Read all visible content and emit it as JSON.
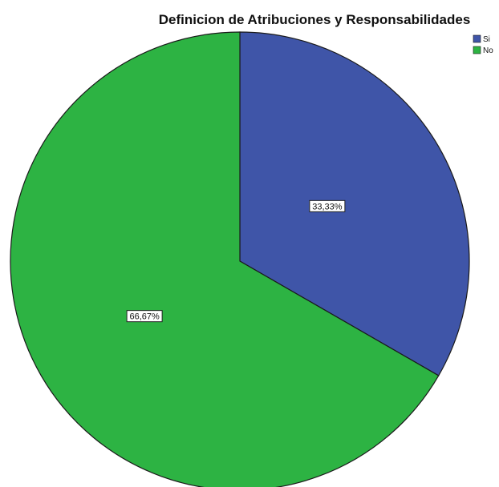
{
  "chart_data": {
    "type": "pie",
    "title": "Definicion de Atribuciones y Responsabilidades",
    "slices": [
      {
        "label": "Si",
        "value": 33.33,
        "display": "33,33%",
        "color": "#3F55A8"
      },
      {
        "label": "No",
        "value": 66.67,
        "display": "66,67%",
        "color": "#2DB343"
      }
    ],
    "legend_placement": "top-right",
    "start_angle_deg": 0,
    "direction": "clockwise"
  }
}
